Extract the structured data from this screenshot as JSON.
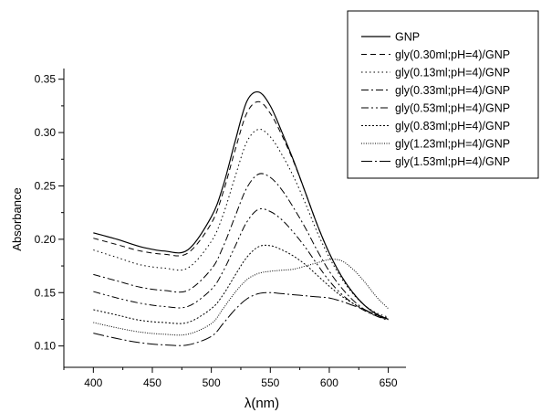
{
  "chart_data": {
    "type": "line",
    "title": "",
    "xlabel": "λ(nm)",
    "ylabel": "Absorbance",
    "xlim": [
      375,
      665
    ],
    "ylim": [
      0.08,
      0.36
    ],
    "xticks": [
      400,
      450,
      500,
      550,
      600,
      650
    ],
    "yticks": [
      0.1,
      0.15,
      0.2,
      0.25,
      0.3,
      0.35
    ],
    "ytick_labels": [
      "0.10",
      "0.15",
      "0.20",
      "0.25",
      "0.30",
      "0.35"
    ],
    "grid": false,
    "legend_position": "top-right",
    "x": [
      400,
      420,
      440,
      460,
      480,
      500,
      510,
      520,
      530,
      540,
      550,
      560,
      570,
      580,
      590,
      600,
      610,
      620,
      630,
      640,
      650
    ],
    "series": [
      {
        "name": "GNP",
        "dash": "solid",
        "values": [
          0.206,
          0.2,
          0.193,
          0.189,
          0.19,
          0.221,
          0.25,
          0.291,
          0.329,
          0.338,
          0.325,
          0.3,
          0.273,
          0.243,
          0.213,
          0.187,
          0.166,
          0.15,
          0.138,
          0.13,
          0.125
        ]
      },
      {
        "name": "gly(0.30ml;pH=4)/GNP",
        "dash": "dashed",
        "values": [
          0.201,
          0.195,
          0.189,
          0.186,
          0.187,
          0.215,
          0.244,
          0.283,
          0.318,
          0.329,
          0.318,
          0.297,
          0.272,
          0.243,
          0.213,
          0.187,
          0.166,
          0.15,
          0.138,
          0.13,
          0.125
        ]
      },
      {
        "name": "gly(0.13ml;pH=4)/GNP",
        "dash": "dotted",
        "values": [
          0.19,
          0.183,
          0.176,
          0.173,
          0.173,
          0.198,
          0.223,
          0.258,
          0.291,
          0.303,
          0.296,
          0.279,
          0.258,
          0.233,
          0.206,
          0.183,
          0.164,
          0.149,
          0.138,
          0.131,
          0.127
        ]
      },
      {
        "name": "gly(0.33ml;pH=4)/GNP",
        "dash": "dashdot",
        "values": [
          0.167,
          0.161,
          0.155,
          0.152,
          0.152,
          0.172,
          0.193,
          0.221,
          0.248,
          0.261,
          0.258,
          0.246,
          0.229,
          0.21,
          0.189,
          0.17,
          0.155,
          0.143,
          0.134,
          0.128,
          0.124
        ]
      },
      {
        "name": "gly(0.53ml;pH=4)/GNP",
        "dash": "dashdotdot",
        "values": [
          0.151,
          0.145,
          0.14,
          0.137,
          0.137,
          0.153,
          0.17,
          0.193,
          0.216,
          0.228,
          0.226,
          0.218,
          0.206,
          0.192,
          0.176,
          0.161,
          0.149,
          0.14,
          0.133,
          0.128,
          0.125
        ]
      },
      {
        "name": "gly(0.83ml;pH=4)/GNP",
        "dash": "shortdot",
        "values": [
          0.134,
          0.129,
          0.124,
          0.122,
          0.122,
          0.135,
          0.148,
          0.166,
          0.183,
          0.193,
          0.194,
          0.19,
          0.184,
          0.176,
          0.166,
          0.156,
          0.147,
          0.14,
          0.134,
          0.129,
          0.126
        ]
      },
      {
        "name": "gly(1.23ml;pH=4)/GNP",
        "dash": "densedot",
        "values": [
          0.122,
          0.117,
          0.113,
          0.111,
          0.111,
          0.121,
          0.135,
          0.15,
          0.162,
          0.168,
          0.17,
          0.171,
          0.172,
          0.175,
          0.178,
          0.181,
          0.18,
          0.172,
          0.16,
          0.146,
          0.135
        ]
      },
      {
        "name": "gly(1.53ml;pH=4)/GNP",
        "dash": "longdashdot",
        "values": [
          0.112,
          0.107,
          0.103,
          0.101,
          0.101,
          0.109,
          0.121,
          0.134,
          0.144,
          0.149,
          0.15,
          0.149,
          0.148,
          0.147,
          0.146,
          0.145,
          0.142,
          0.138,
          0.134,
          0.129,
          0.125
        ]
      }
    ]
  }
}
